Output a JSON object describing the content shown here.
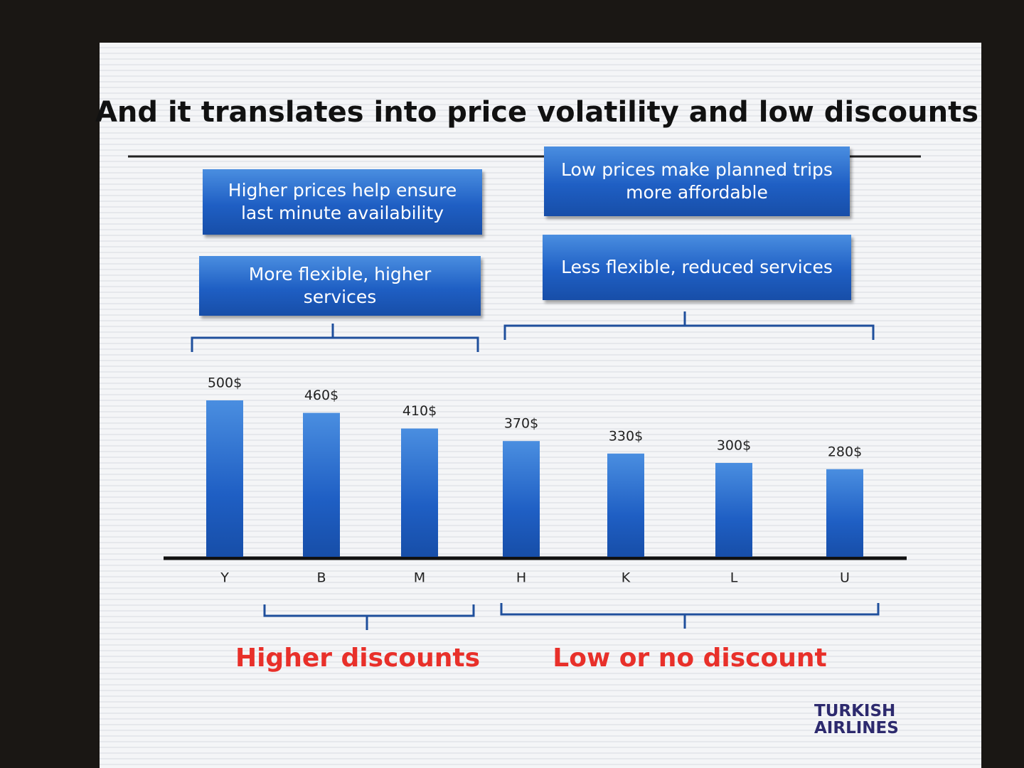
{
  "chart_data": {
    "type": "bar",
    "title": "And it translates into price volatility and low discounts",
    "categories": [
      "Y",
      "B",
      "M",
      "H",
      "K",
      "L",
      "U"
    ],
    "values": [
      500,
      460,
      410,
      370,
      330,
      300,
      280
    ],
    "value_labels": [
      "500$",
      "460$",
      "410$",
      "370$",
      "330$",
      "300$",
      "280$"
    ],
    "color": "#1f5fc4",
    "annotations": [
      "Higher prices help ensure last minute availability",
      "Low prices make planned trips more affordable",
      "More flexible, higher services",
      "Less flexible, reduced services",
      "Higher discounts",
      "Low or no discount"
    ],
    "logo": [
      "TURKISH",
      "AIRLINES"
    ]
  }
}
